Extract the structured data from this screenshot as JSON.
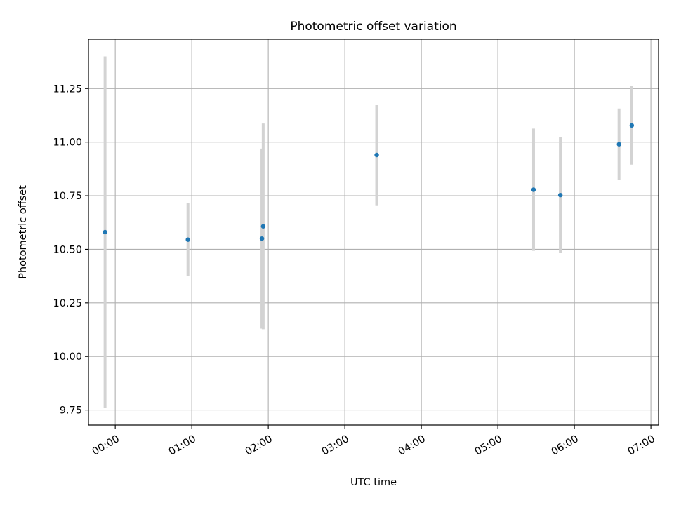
{
  "chart_data": {
    "type": "scatter",
    "title": "Photometric offset variation",
    "xlabel": "UTC time",
    "ylabel": "Photometric offset",
    "x_axis_type": "time",
    "xlim": [
      "23:39",
      "07:06"
    ],
    "ylim": [
      9.68,
      11.48
    ],
    "grid": true,
    "x_ticks": [
      "00:00",
      "01:00",
      "02:00",
      "03:00",
      "04:00",
      "05:00",
      "06:00",
      "07:00"
    ],
    "y_ticks": [
      "9.75",
      "10.00",
      "10.25",
      "10.50",
      "10.75",
      "11.00",
      "11.25"
    ],
    "points": [
      {
        "x": "23:52",
        "y": 10.58,
        "err": 0.82
      },
      {
        "x": "00:57",
        "y": 10.545,
        "err": 0.17
      },
      {
        "x": "01:55",
        "y": 10.55,
        "err": 0.42
      },
      {
        "x": "01:56",
        "y": 10.607,
        "err": 0.48
      },
      {
        "x": "03:25",
        "y": 10.94,
        "err": 0.235
      },
      {
        "x": "05:28",
        "y": 10.778,
        "err": 0.285
      },
      {
        "x": "05:49",
        "y": 10.753,
        "err": 0.27
      },
      {
        "x": "06:35",
        "y": 10.99,
        "err": 0.167
      },
      {
        "x": "06:45",
        "y": 11.078,
        "err": 0.183
      }
    ],
    "colors": {
      "marker": "#1f77b4",
      "errorbar": "#d3d3d3",
      "grid": "#b0b0b0",
      "spine": "#000000"
    }
  }
}
